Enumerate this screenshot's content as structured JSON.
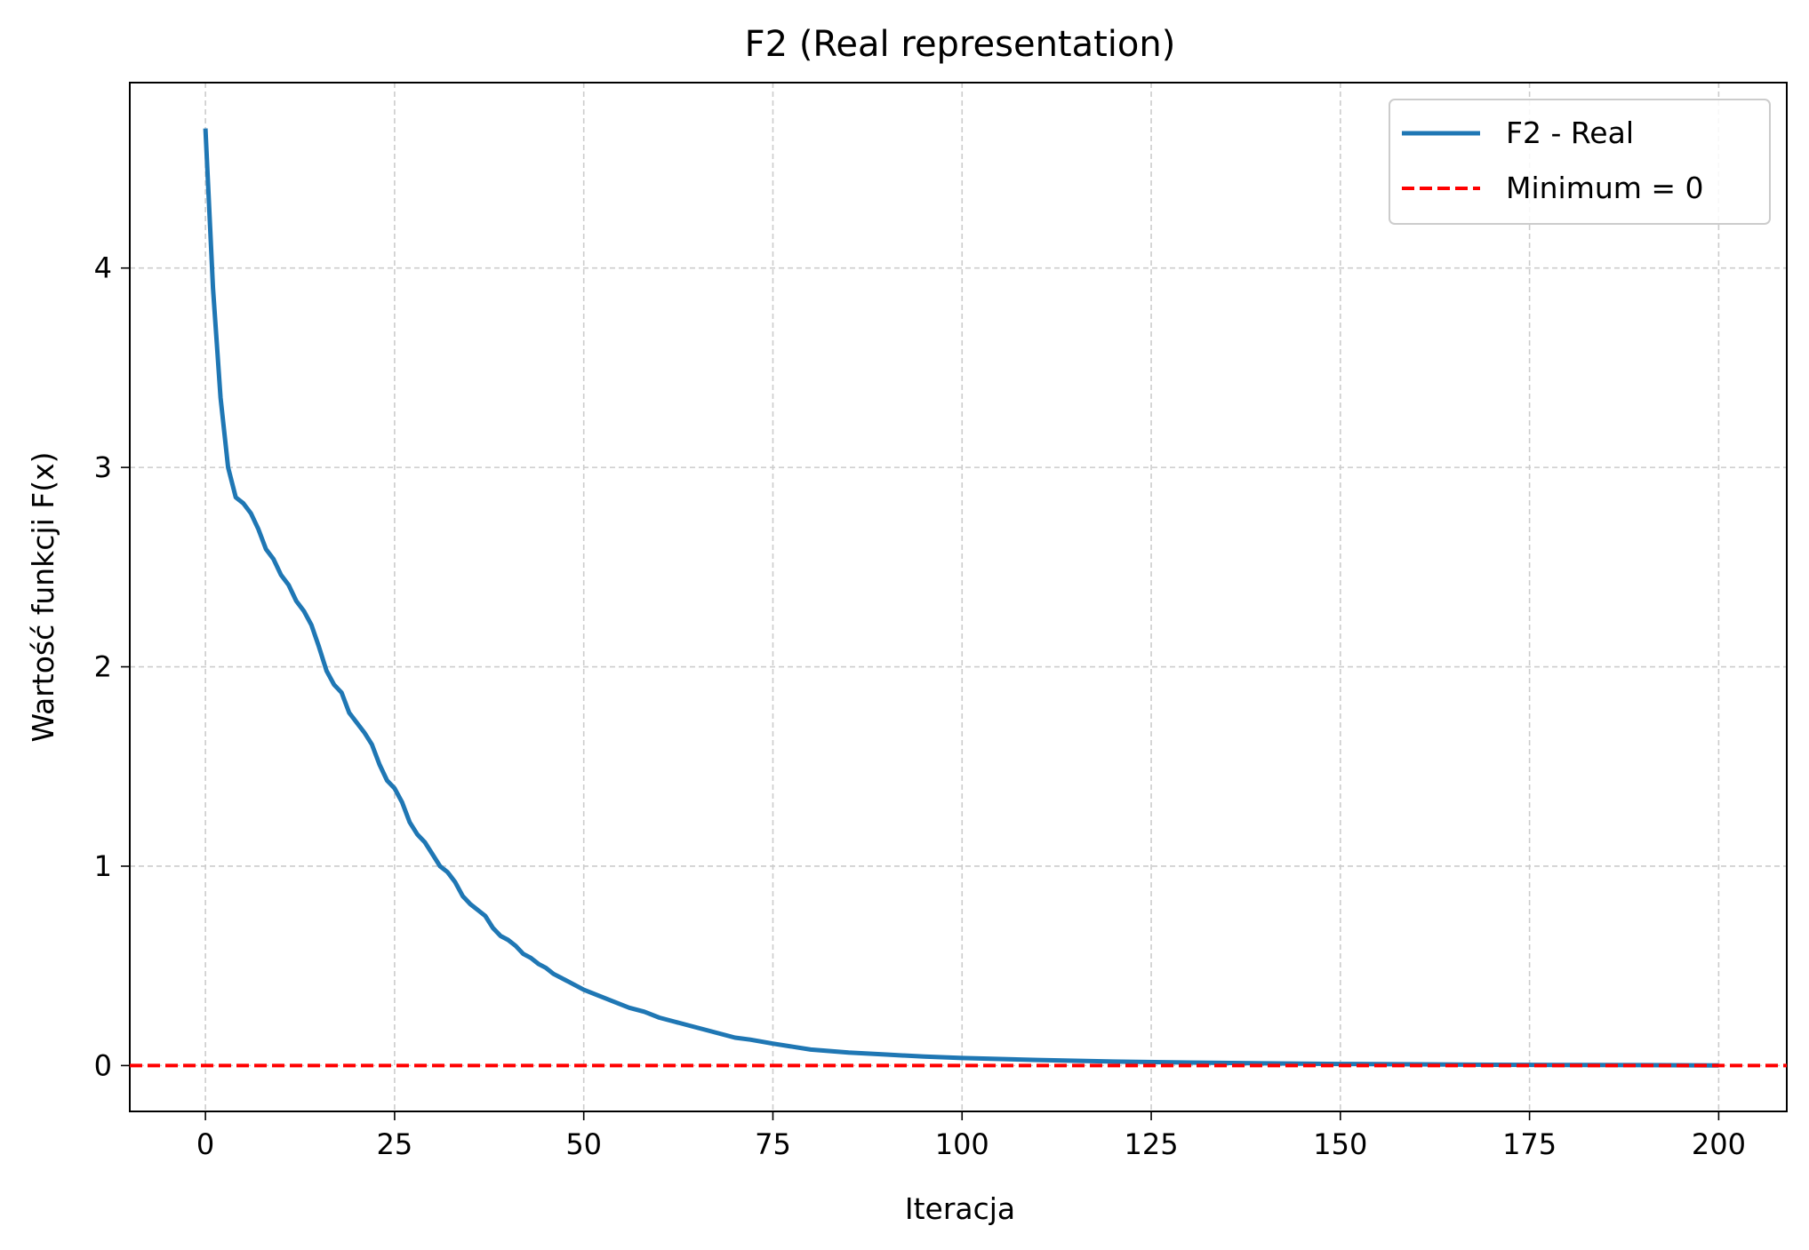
{
  "chart_data": {
    "type": "line",
    "title": "F2 (Real representation)",
    "xlabel": "Iteracja",
    "ylabel": "Wartość funkcji F(x)",
    "xlim": [
      -10,
      209
    ],
    "ylim": [
      -0.23,
      4.93
    ],
    "xticks": [
      0,
      25,
      50,
      75,
      100,
      125,
      150,
      175,
      200
    ],
    "yticks": [
      0,
      1,
      2,
      3,
      4
    ],
    "grid": true,
    "legend_position": "upper right",
    "series": [
      {
        "name": "F2 - Real",
        "color": "#1f77b4",
        "style": "solid",
        "x": [
          0,
          1,
          2,
          3,
          4,
          5,
          6,
          7,
          8,
          9,
          10,
          11,
          12,
          13,
          14,
          15,
          16,
          17,
          18,
          19,
          20,
          21,
          22,
          23,
          24,
          25,
          26,
          27,
          28,
          29,
          30,
          31,
          32,
          33,
          34,
          35,
          36,
          37,
          38,
          39,
          40,
          41,
          42,
          43,
          44,
          45,
          46,
          47,
          48,
          49,
          50,
          52,
          54,
          56,
          58,
          60,
          62,
          64,
          66,
          68,
          70,
          72,
          75,
          80,
          85,
          90,
          95,
          100,
          110,
          120,
          130,
          140,
          150,
          160,
          170,
          180,
          190,
          200
        ],
        "y": [
          4.7,
          3.9,
          3.35,
          3.0,
          2.85,
          2.82,
          2.77,
          2.69,
          2.59,
          2.54,
          2.46,
          2.41,
          2.33,
          2.28,
          2.21,
          2.1,
          1.98,
          1.91,
          1.87,
          1.77,
          1.72,
          1.67,
          1.61,
          1.51,
          1.43,
          1.39,
          1.32,
          1.22,
          1.16,
          1.12,
          1.06,
          1.0,
          0.97,
          0.92,
          0.85,
          0.81,
          0.78,
          0.75,
          0.69,
          0.65,
          0.63,
          0.6,
          0.56,
          0.54,
          0.51,
          0.49,
          0.46,
          0.44,
          0.42,
          0.4,
          0.38,
          0.35,
          0.32,
          0.29,
          0.27,
          0.24,
          0.22,
          0.2,
          0.18,
          0.16,
          0.14,
          0.13,
          0.11,
          0.08,
          0.065,
          0.055,
          0.045,
          0.038,
          0.028,
          0.02,
          0.015,
          0.011,
          0.008,
          0.006,
          0.004,
          0.003,
          0.002,
          0.001
        ]
      },
      {
        "name": "Minimum = 0",
        "color": "#ff0000",
        "style": "dashed",
        "y_constant": 0
      }
    ]
  }
}
